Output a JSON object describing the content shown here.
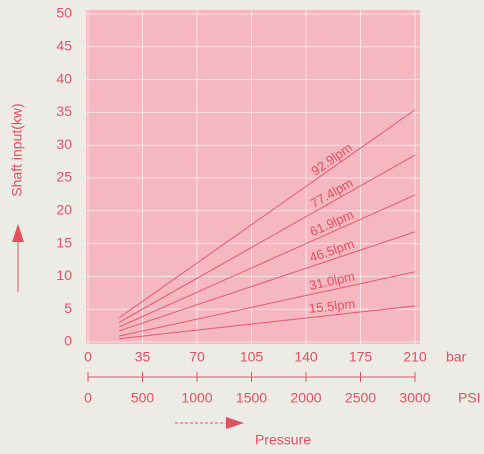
{
  "chart_data": {
    "type": "line",
    "ylabel": "Shaft input(kw)",
    "xlabel": "Pressure",
    "x_unit": "bar",
    "x2_unit": "PSI",
    "x": [
      20,
      210
    ],
    "series": [
      {
        "name": "92.9lpm",
        "color": "#e4596b",
        "values": [
          3.7,
          35.4
        ]
      },
      {
        "name": "77.4lpm",
        "color": "#e4596b",
        "values": [
          3.0,
          28.5
        ]
      },
      {
        "name": "61.9lpm",
        "color": "#e4596b",
        "values": [
          2.3,
          22.4
        ]
      },
      {
        "name": "46.5lpm",
        "color": "#e4596b",
        "values": [
          1.7,
          16.8
        ]
      },
      {
        "name": "31.0lpm",
        "color": "#e4596b",
        "values": [
          0.9,
          10.7
        ]
      },
      {
        "name": "15.5lpm",
        "color": "#e4596b",
        "values": [
          0.5,
          5.5
        ]
      }
    ],
    "xlim": [
      0,
      210
    ],
    "xticks": [
      0,
      35,
      70,
      105,
      140,
      175,
      210
    ],
    "x2lim": [
      0,
      3000
    ],
    "x2ticks": [
      0,
      500,
      1000,
      1500,
      2000,
      2500,
      3000
    ],
    "ylim": [
      0,
      50
    ],
    "yticks": [
      0,
      5,
      10,
      15,
      20,
      25,
      30,
      35,
      40,
      45,
      50
    ],
    "grid": true
  }
}
